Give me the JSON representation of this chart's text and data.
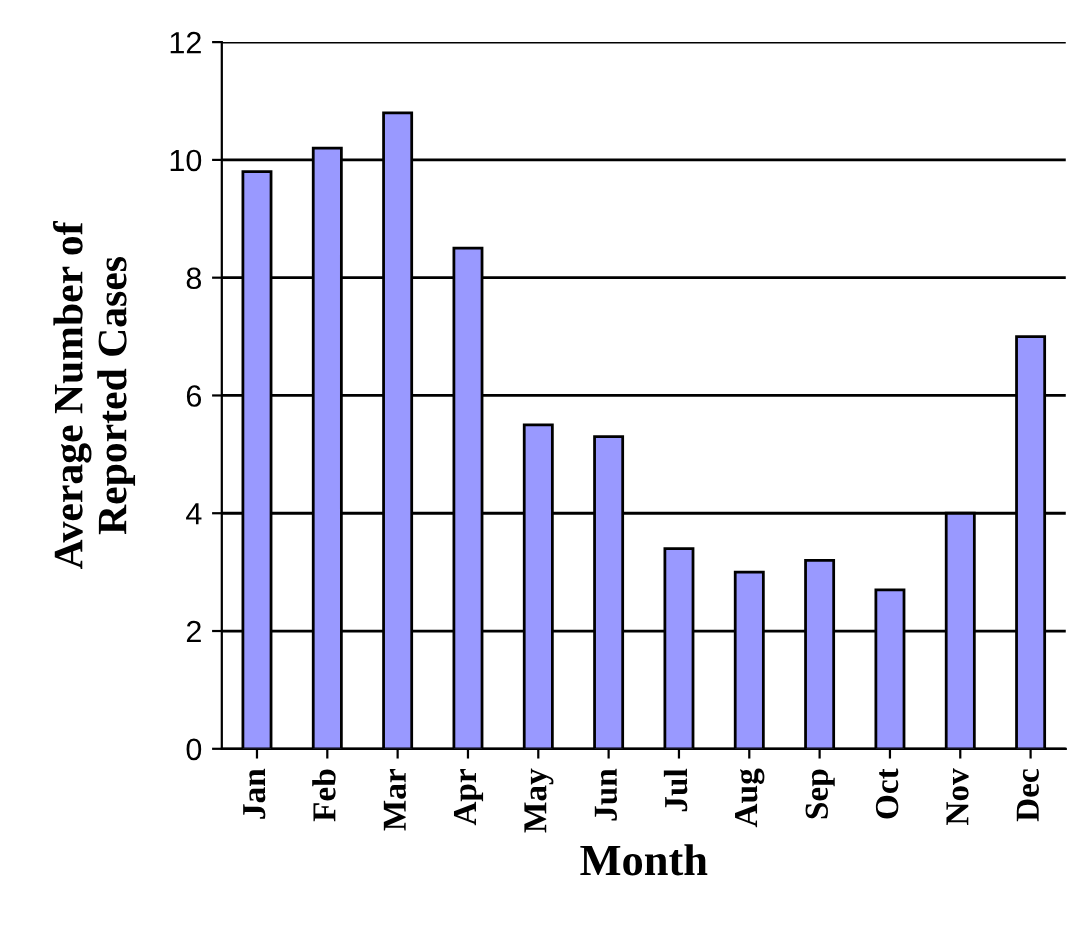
{
  "chart_data": {
    "type": "bar",
    "xlabel": "Month",
    "ylabel": "Average Number of\nReported Cases",
    "categories": [
      "Jan",
      "Feb",
      "Mar",
      "Apr",
      "May",
      "Jun",
      "Jul",
      "Aug",
      "Sep",
      "Oct",
      "Nov",
      "Dec"
    ],
    "values": [
      9.8,
      10.2,
      10.8,
      8.5,
      5.5,
      5.3,
      3.4,
      3.0,
      3.2,
      2.7,
      4.0,
      7.0
    ],
    "color": "#9999ff",
    "ylim": [
      0,
      12
    ],
    "yticks": [
      0,
      2,
      4,
      6,
      8,
      10,
      12
    ],
    "grid": "y"
  }
}
